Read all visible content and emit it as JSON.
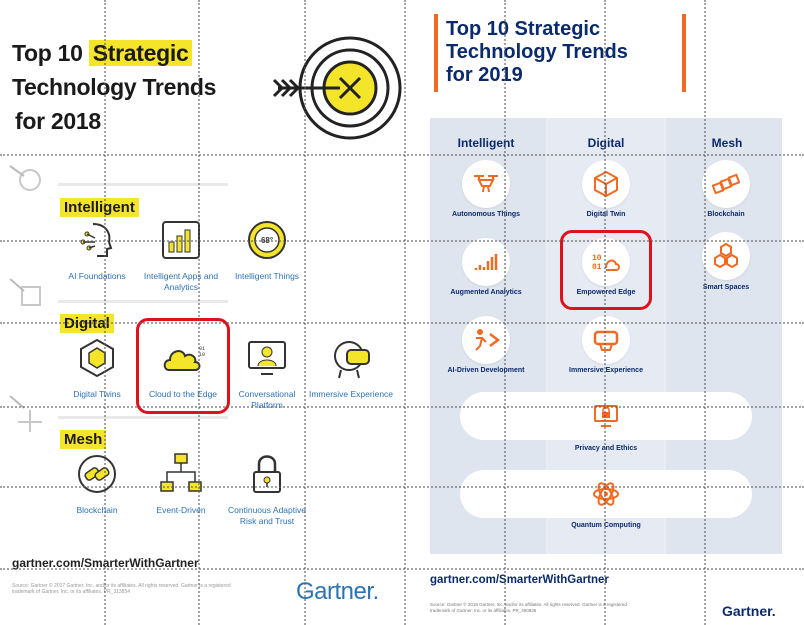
{
  "left_poster": {
    "title_line1_prefix": "Top 10 ",
    "title_line1_highlight": "Strategic",
    "title_line2": "Technology Trends",
    "title_line3": "for 2018",
    "categories": {
      "intelligent": "Intelligent",
      "digital": "Digital",
      "mesh": "Mesh"
    },
    "items": {
      "ai_foundations": "AI Foundations",
      "intelligent_apps": "Intelligent Apps and Analytics",
      "intelligent_things": "Intelligent Things",
      "intelligent_things_temp": "68°",
      "digital_twins": "Digital Twins",
      "cloud_to_edge": "Cloud to the Edge",
      "conversational": "Conversational Platform",
      "immersive": "Immersive Experience",
      "blockchain": "Blockchain",
      "event_driven": "Event-Driven",
      "continuous": "Continuous Adaptive Risk and Trust"
    },
    "url": "gartner.com/SmarterWithGartner",
    "fine_print": "Source: Gartner © 2017 Gartner, Inc. and/or its affiliates. All rights reserved. Gartner is a registered trademark of Gartner, Inc. or its affiliates. PR_313854",
    "logo": "Gartner."
  },
  "right_poster": {
    "title_line1": "Top 10 Strategic",
    "title_line2": "Technology Trends",
    "title_line3": "for 2019",
    "columns": {
      "intelligent": "Intelligent",
      "digital": "Digital",
      "mesh": "Mesh"
    },
    "items": {
      "autonomous": "Autonomous Things",
      "augmented": "Augmented Analytics",
      "ai_dev": "AI-Driven Development",
      "digital_twin": "Digital Twin",
      "empowered": "Empowered Edge",
      "immersive": "Immersive Experience",
      "blockchain": "Blockchain",
      "smart_spaces": "Smart Spaces",
      "privacy": "Privacy and Ethics",
      "quantum": "Quantum Computing"
    },
    "url": "gartner.com/SmarterWithGartner",
    "fine_print": "Source: Gartner © 2018 Gartner, Inc. and/or its affiliates. All rights reserved. Gartner is a registered trademark of Gartner, Inc. or its affiliates. PR_490836",
    "logo": "Gartner."
  },
  "colors": {
    "highlight_yellow": "#f5e52a",
    "gartner_blue": "#2d73b4",
    "navy": "#0b2a6b",
    "orange": "#f26a21",
    "annotation_red": "#e0111b"
  }
}
